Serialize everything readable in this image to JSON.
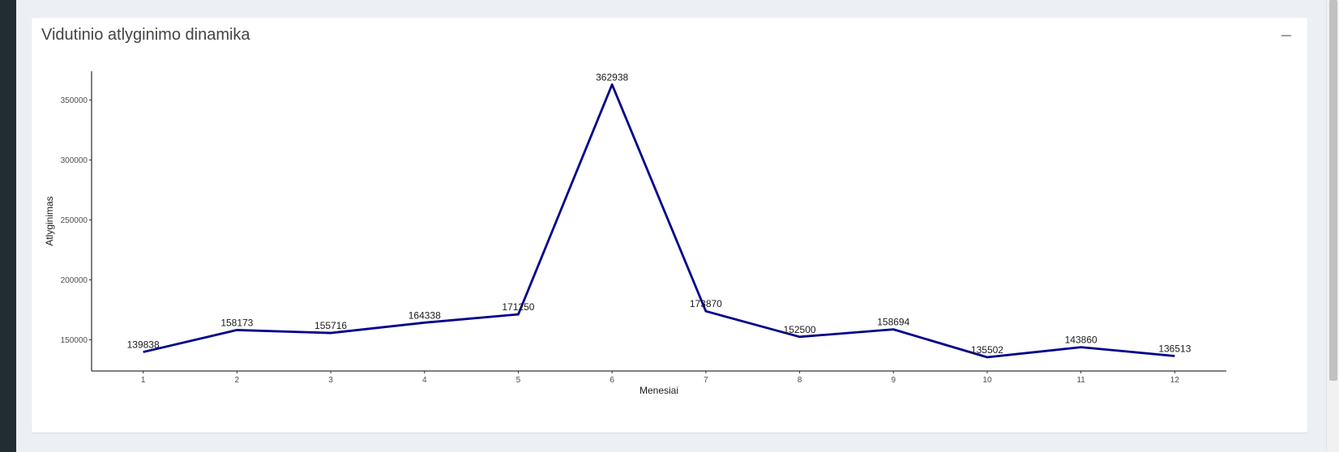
{
  "box": {
    "title": "Vidutinio atlyginimo dinamika",
    "collapse_icon": "minus-icon"
  },
  "chart_data": {
    "type": "line",
    "title": "",
    "xlabel": "Menesiai",
    "ylabel": "Atlyginimas",
    "x": [
      1,
      2,
      3,
      4,
      5,
      6,
      7,
      8,
      9,
      10,
      11,
      12
    ],
    "series": [
      {
        "values": [
          139838,
          158173,
          155716,
          164338,
          171250,
          362938,
          173870,
          152500,
          158694,
          135502,
          143860,
          136513
        ],
        "color": "#00008b"
      }
    ],
    "x_ticks": [
      "1",
      "2",
      "3",
      "4",
      "5",
      "6",
      "7",
      "8",
      "9",
      "10",
      "11",
      "12"
    ],
    "y_ticks": [
      "150000",
      "200000",
      "250000",
      "300000",
      "350000"
    ],
    "ylim": [
      124000,
      374000
    ],
    "xlim": [
      0.45,
      12.55
    ],
    "grid": false,
    "legend": "none"
  },
  "colors": {
    "page_background": "#ecf0f5",
    "sidebar": "#222d32",
    "line": "#00008b"
  }
}
